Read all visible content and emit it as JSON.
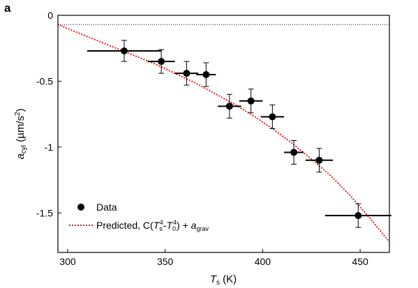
{
  "panel_label": "a",
  "chart_data": {
    "type": "scatter",
    "xlim": [
      295,
      465
    ],
    "ylim": [
      -1.8,
      0
    ],
    "x_ticks": [
      300,
      350,
      400,
      450
    ],
    "x_tick_labels": [
      "300",
      "350",
      "400",
      "450"
    ],
    "y_ticks": [
      0,
      -0.5,
      -1,
      -1.5
    ],
    "y_tick_labels": [
      "0",
      "-0.5",
      "-1",
      "-1.5"
    ],
    "xlabel": {
      "main": "T",
      "sub": "s",
      "unit": " (K)"
    },
    "ylabel": {
      "main": "a",
      "sub": "cyl",
      "unit_pre": " (µm/s",
      "unit_sup": "2",
      "unit_post": ")"
    },
    "reference_line": {
      "y": -0.07,
      "style": "dotted",
      "color": "#000000"
    },
    "series": [
      {
        "name": "Data",
        "kind": "points",
        "color": "#000000",
        "points": [
          {
            "x": 329,
            "y": -0.27,
            "xerr": 19,
            "yerr": 0.08
          },
          {
            "x": 348,
            "y": -0.35,
            "xerr": 7,
            "yerr": 0.09
          },
          {
            "x": 361,
            "y": -0.44,
            "xerr": 6,
            "yerr": 0.09
          },
          {
            "x": 371,
            "y": -0.45,
            "xerr": 5,
            "yerr": 0.09
          },
          {
            "x": 383,
            "y": -0.69,
            "xerr": 6,
            "yerr": 0.09
          },
          {
            "x": 394,
            "y": -0.65,
            "xerr": 6,
            "yerr": 0.09
          },
          {
            "x": 405,
            "y": -0.77,
            "xerr": 6,
            "yerr": 0.09
          },
          {
            "x": 416,
            "y": -1.04,
            "xerr": 5,
            "yerr": 0.09
          },
          {
            "x": 429,
            "y": -1.1,
            "xerr": 7,
            "yerr": 0.09
          },
          {
            "x": 449,
            "y": -1.52,
            "xerr": 17,
            "yerr": 0.09
          }
        ]
      },
      {
        "name": "Predicted, C(T_s^4-T_0^4) + a_grav",
        "kind": "curve",
        "style": "dotted",
        "color": "#e41a1c",
        "x": [
          295,
          305,
          315,
          325,
          335,
          345,
          355,
          365,
          375,
          385,
          395,
          405,
          415,
          425,
          435,
          445,
          455,
          465
        ],
        "y": [
          -0.07,
          -0.13,
          -0.19,
          -0.25,
          -0.31,
          -0.37,
          -0.44,
          -0.51,
          -0.59,
          -0.67,
          -0.76,
          -0.86,
          -0.97,
          -1.09,
          -1.22,
          -1.37,
          -1.54,
          -1.72
        ]
      }
    ],
    "legend": {
      "position": "bottom-left",
      "data_label": "Data",
      "pred_prefix": "Predicted, C(",
      "pred_T": "T",
      "pred_s": "s",
      "pred_4a": "4",
      "pred_minus": "-",
      "pred_T0": "T",
      "pred_0": "0",
      "pred_4b": "4",
      "pred_close": ") + ",
      "pred_a": "a",
      "pred_grav": "grav"
    }
  }
}
